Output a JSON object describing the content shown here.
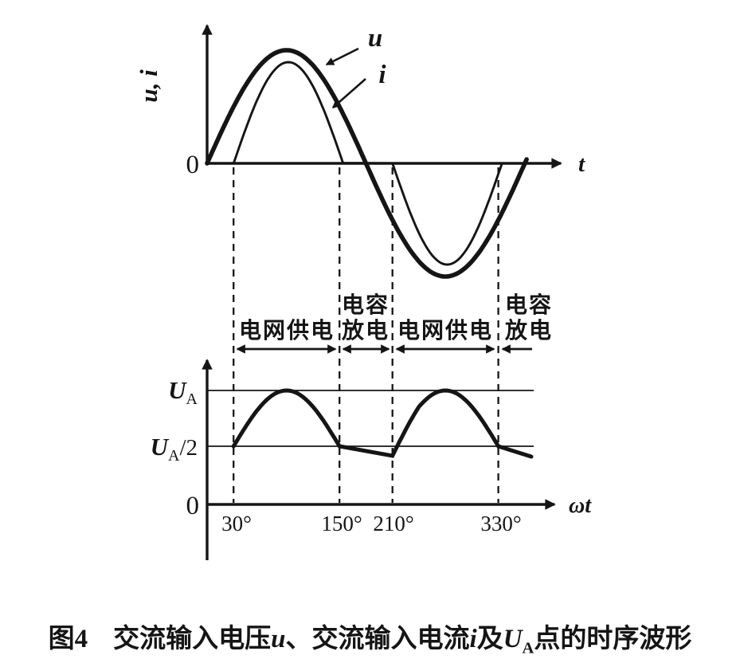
{
  "colors": {
    "ink": "#151515",
    "background": "#ffffff"
  },
  "figure": {
    "top_chart": {
      "ylabel": "u, i",
      "origin_label": "0",
      "xlabel": "t",
      "curve_labels": {
        "u": "u",
        "i": "i"
      }
    },
    "bottom_chart": {
      "origin_label": "0",
      "xlabel": "ωt",
      "ua_base": "U",
      "ua_sub": "A",
      "ua_half_base": "U",
      "ua_half_sub": "A",
      "ua_half_frac": "/2"
    }
  },
  "annotations": {
    "intervals": [
      {
        "label": "电网供电",
        "from_deg": 30,
        "to_deg": 150,
        "arrow": "double"
      },
      {
        "label": "电容放电",
        "lines": [
          "电容",
          "放电"
        ],
        "from_deg": 150,
        "to_deg": 210,
        "arrow": "double"
      },
      {
        "label": "电网供电",
        "from_deg": 210,
        "to_deg": 330,
        "arrow": "double"
      },
      {
        "label": "电容放电",
        "lines": [
          "电容",
          "放电"
        ],
        "from_deg": 330,
        "to_deg": 368,
        "arrow": "left-only"
      }
    ]
  },
  "chart_data": [
    {
      "type": "line",
      "title": "AC input voltage u and AC input current i waveforms",
      "ylabel": "u, i",
      "xlabel": "t",
      "x_axis_unit": "deg",
      "series": [
        {
          "name": "u",
          "shape": "sine",
          "range_deg": [
            0,
            362
          ],
          "zero_crossings_deg": [
            0,
            180,
            360
          ],
          "peak_deg": 90,
          "relative_amplitude": 1.0
        },
        {
          "name": "i",
          "shape": "conduction-humps",
          "conduction_deg": [
            [
              30,
              150
            ],
            [
              210,
              330
            ]
          ],
          "peak_deg": [
            90,
            270
          ],
          "relative_amplitude": 0.9
        }
      ],
      "legend_position": "leader-arrows-top-right",
      "grid": false
    },
    {
      "type": "line",
      "title": "Voltage at node U_A versus ωt",
      "xlabel": "ωt",
      "x_ticks_deg": [
        30,
        150,
        210,
        330
      ],
      "x_tick_labels": [
        "30°",
        "150°",
        "210°",
        "330°"
      ],
      "y_levels": [
        "U_A",
        "U_A/2",
        "0"
      ],
      "segments": [
        {
          "range_deg": [
            30,
            150
          ],
          "shape": "half-sine-hump",
          "from_level": "U_A/2",
          "peak_level": "U_A",
          "end_level": "U_A/2"
        },
        {
          "range_deg": [
            150,
            210
          ],
          "shape": "capacitor-discharge-slope",
          "from_level": "U_A/2",
          "end_level": "slightly below U_A/2"
        },
        {
          "range_deg": [
            210,
            330
          ],
          "shape": "half-sine-hump",
          "from_level": "slightly below U_A/2",
          "peak_level": "U_A",
          "end_level": "U_A/2"
        },
        {
          "range_deg": [
            330,
            368
          ],
          "shape": "capacitor-discharge-slope",
          "from_level": "U_A/2",
          "end_level": "slightly below U_A/2"
        }
      ],
      "reference_lines": [
        "U_A",
        "U_A/2"
      ],
      "grid": false
    }
  ],
  "caption": {
    "fig_label": "图4",
    "part1": "交流输入电压",
    "var1": "u",
    "sep1": "、",
    "part2": "交流输入电流",
    "var2": "i",
    "part3": "及",
    "var3_base": "U",
    "var3_sub": "A",
    "part4": "点的时序波形"
  }
}
